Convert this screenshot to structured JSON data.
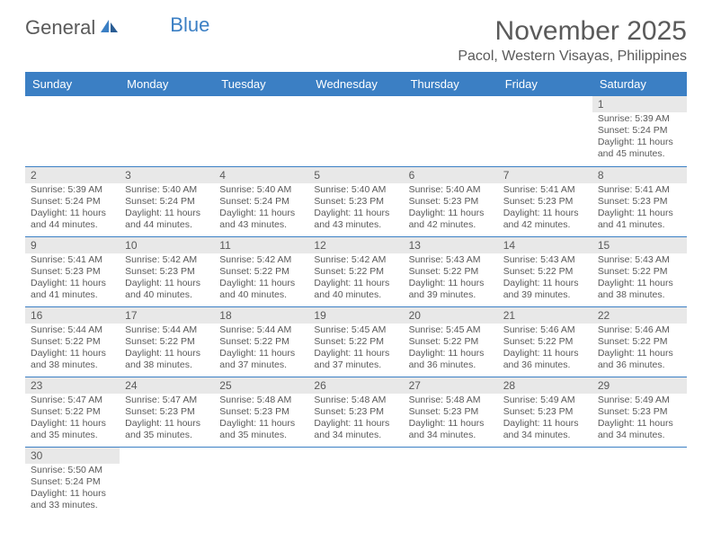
{
  "logo": {
    "text1": "General",
    "text2": "Blue"
  },
  "title": "November 2025",
  "location": "Pacol, Western Visayas, Philippines",
  "colors": {
    "header_bg": "#3b7fc4",
    "header_text": "#ffffff",
    "daynum_bg": "#e8e8e8",
    "text": "#5a5a5a",
    "border": "#3b7fc4"
  },
  "weekdays": [
    "Sunday",
    "Monday",
    "Tuesday",
    "Wednesday",
    "Thursday",
    "Friday",
    "Saturday"
  ],
  "first_weekday_index": 6,
  "days": [
    {
      "n": 1,
      "sunrise": "5:39 AM",
      "sunset": "5:24 PM",
      "daylight": "11 hours and 45 minutes."
    },
    {
      "n": 2,
      "sunrise": "5:39 AM",
      "sunset": "5:24 PM",
      "daylight": "11 hours and 44 minutes."
    },
    {
      "n": 3,
      "sunrise": "5:40 AM",
      "sunset": "5:24 PM",
      "daylight": "11 hours and 44 minutes."
    },
    {
      "n": 4,
      "sunrise": "5:40 AM",
      "sunset": "5:24 PM",
      "daylight": "11 hours and 43 minutes."
    },
    {
      "n": 5,
      "sunrise": "5:40 AM",
      "sunset": "5:23 PM",
      "daylight": "11 hours and 43 minutes."
    },
    {
      "n": 6,
      "sunrise": "5:40 AM",
      "sunset": "5:23 PM",
      "daylight": "11 hours and 42 minutes."
    },
    {
      "n": 7,
      "sunrise": "5:41 AM",
      "sunset": "5:23 PM",
      "daylight": "11 hours and 42 minutes."
    },
    {
      "n": 8,
      "sunrise": "5:41 AM",
      "sunset": "5:23 PM",
      "daylight": "11 hours and 41 minutes."
    },
    {
      "n": 9,
      "sunrise": "5:41 AM",
      "sunset": "5:23 PM",
      "daylight": "11 hours and 41 minutes."
    },
    {
      "n": 10,
      "sunrise": "5:42 AM",
      "sunset": "5:23 PM",
      "daylight": "11 hours and 40 minutes."
    },
    {
      "n": 11,
      "sunrise": "5:42 AM",
      "sunset": "5:22 PM",
      "daylight": "11 hours and 40 minutes."
    },
    {
      "n": 12,
      "sunrise": "5:42 AM",
      "sunset": "5:22 PM",
      "daylight": "11 hours and 40 minutes."
    },
    {
      "n": 13,
      "sunrise": "5:43 AM",
      "sunset": "5:22 PM",
      "daylight": "11 hours and 39 minutes."
    },
    {
      "n": 14,
      "sunrise": "5:43 AM",
      "sunset": "5:22 PM",
      "daylight": "11 hours and 39 minutes."
    },
    {
      "n": 15,
      "sunrise": "5:43 AM",
      "sunset": "5:22 PM",
      "daylight": "11 hours and 38 minutes."
    },
    {
      "n": 16,
      "sunrise": "5:44 AM",
      "sunset": "5:22 PM",
      "daylight": "11 hours and 38 minutes."
    },
    {
      "n": 17,
      "sunrise": "5:44 AM",
      "sunset": "5:22 PM",
      "daylight": "11 hours and 38 minutes."
    },
    {
      "n": 18,
      "sunrise": "5:44 AM",
      "sunset": "5:22 PM",
      "daylight": "11 hours and 37 minutes."
    },
    {
      "n": 19,
      "sunrise": "5:45 AM",
      "sunset": "5:22 PM",
      "daylight": "11 hours and 37 minutes."
    },
    {
      "n": 20,
      "sunrise": "5:45 AM",
      "sunset": "5:22 PM",
      "daylight": "11 hours and 36 minutes."
    },
    {
      "n": 21,
      "sunrise": "5:46 AM",
      "sunset": "5:22 PM",
      "daylight": "11 hours and 36 minutes."
    },
    {
      "n": 22,
      "sunrise": "5:46 AM",
      "sunset": "5:22 PM",
      "daylight": "11 hours and 36 minutes."
    },
    {
      "n": 23,
      "sunrise": "5:47 AM",
      "sunset": "5:22 PM",
      "daylight": "11 hours and 35 minutes."
    },
    {
      "n": 24,
      "sunrise": "5:47 AM",
      "sunset": "5:23 PM",
      "daylight": "11 hours and 35 minutes."
    },
    {
      "n": 25,
      "sunrise": "5:48 AM",
      "sunset": "5:23 PM",
      "daylight": "11 hours and 35 minutes."
    },
    {
      "n": 26,
      "sunrise": "5:48 AM",
      "sunset": "5:23 PM",
      "daylight": "11 hours and 34 minutes."
    },
    {
      "n": 27,
      "sunrise": "5:48 AM",
      "sunset": "5:23 PM",
      "daylight": "11 hours and 34 minutes."
    },
    {
      "n": 28,
      "sunrise": "5:49 AM",
      "sunset": "5:23 PM",
      "daylight": "11 hours and 34 minutes."
    },
    {
      "n": 29,
      "sunrise": "5:49 AM",
      "sunset": "5:23 PM",
      "daylight": "11 hours and 34 minutes."
    },
    {
      "n": 30,
      "sunrise": "5:50 AM",
      "sunset": "5:24 PM",
      "daylight": "11 hours and 33 minutes."
    }
  ],
  "labels": {
    "sunrise": "Sunrise:",
    "sunset": "Sunset:",
    "daylight": "Daylight:"
  }
}
